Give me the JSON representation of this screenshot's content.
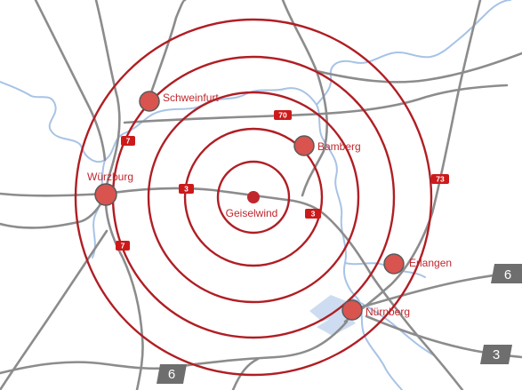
{
  "map": {
    "center": {
      "name": "Geiselwind"
    },
    "ring_count": 5,
    "colors": {
      "ring": "#b01e24",
      "city_fill": "#d9534f",
      "city_stroke": "#5a5a5a",
      "label": "#c0272d",
      "road": "#8c8c8c",
      "river": "#a7c3e6",
      "highway_shield": "#cc1a1a",
      "grey_shield": "#6e6e6e"
    },
    "cities": [
      {
        "key": "schweinfurt",
        "name": "Schweinfurt"
      },
      {
        "key": "bamberg",
        "name": "Bamberg"
      },
      {
        "key": "wurzburg",
        "name": "Würzburg"
      },
      {
        "key": "erlangen",
        "name": "Erlangen"
      },
      {
        "key": "nurnberg",
        "name": "Nürnberg"
      }
    ],
    "highway_shields": [
      {
        "key": "a70",
        "label": "70"
      },
      {
        "key": "a7-north",
        "label": "7"
      },
      {
        "key": "a3-west",
        "label": "3"
      },
      {
        "key": "a3-east",
        "label": "3"
      },
      {
        "key": "a73",
        "label": "73"
      },
      {
        "key": "a7-south",
        "label": "7"
      }
    ],
    "grey_shields": [
      {
        "key": "b6-east",
        "label": "6"
      },
      {
        "key": "b3-southeast",
        "label": "3"
      },
      {
        "key": "b6-south",
        "label": "6"
      }
    ]
  }
}
